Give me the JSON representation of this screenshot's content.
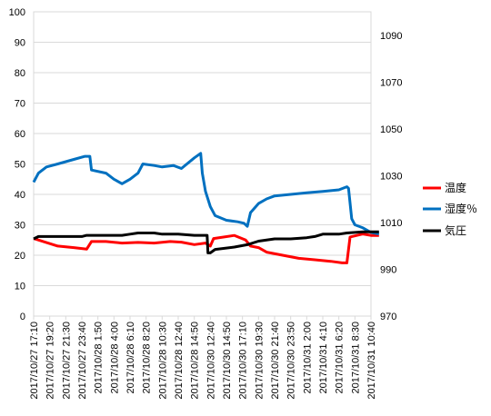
{
  "chart_data": {
    "type": "line",
    "title": "",
    "left_axis": {
      "ylim": [
        0,
        100
      ],
      "ticks": [
        "0",
        "10",
        "20",
        "30",
        "40",
        "50",
        "60",
        "70",
        "80",
        "90",
        "100"
      ]
    },
    "right_axis": {
      "ylim": [
        970,
        1100
      ],
      "ticks": [
        "970",
        "990",
        "1010",
        "1030",
        "1050",
        "1070",
        "1090"
      ]
    },
    "grid": true,
    "legend": "right",
    "x_ticks": [
      "2017/10/27 17:10",
      "2017/10/27 19:20",
      "2017/10/27 21:30",
      "2017/10/27 23:40",
      "2017/10/28 1:50",
      "2017/10/28 4:00",
      "2017/10/28 6:10",
      "2017/10/28 8:20",
      "2017/10/28 10:30",
      "2017/10/28 12:40",
      "2017/10/28 14:50",
      "2017/10/30 12:40",
      "2017/10/30 14:50",
      "2017/10/30 17:10",
      "2017/10/30 19:30",
      "2017/10/30 21:40",
      "2017/10/30 23:50",
      "2017/10/31 2:00",
      "2017/10/31 4:10",
      "2017/10/31 6:20",
      "2017/10/31 8:30",
      "2017/10/31 10:40"
    ],
    "series": [
      {
        "name": "温度",
        "axis": "left",
        "color": "#ff0000",
        "points": [
          [
            0,
            25.5
          ],
          [
            0.6,
            24.5
          ],
          [
            1.5,
            23
          ],
          [
            2.5,
            22.5
          ],
          [
            3.3,
            22
          ],
          [
            3.6,
            24.5
          ],
          [
            4.5,
            24.5
          ],
          [
            5.5,
            24
          ],
          [
            6.5,
            24.2
          ],
          [
            7.5,
            24
          ],
          [
            8.5,
            24.5
          ],
          [
            9.2,
            24.3
          ],
          [
            10,
            23.5
          ],
          [
            10.7,
            24
          ],
          [
            11,
            23
          ],
          [
            11.2,
            25.5
          ],
          [
            12.5,
            26.5
          ],
          [
            13.2,
            25
          ],
          [
            13.5,
            23
          ],
          [
            14,
            22.5
          ],
          [
            14.5,
            21
          ],
          [
            15.5,
            20
          ],
          [
            16.5,
            19
          ],
          [
            17.5,
            18.5
          ],
          [
            18.5,
            18
          ],
          [
            19.2,
            17.5
          ],
          [
            19.5,
            17.5
          ],
          [
            19.7,
            26
          ],
          [
            20.5,
            27
          ],
          [
            21,
            26.5
          ],
          [
            21.5,
            26.5
          ]
        ]
      },
      {
        "name": "湿度％",
        "axis": "left",
        "color": "#0070c0",
        "points": [
          [
            0,
            44
          ],
          [
            0.3,
            47
          ],
          [
            0.8,
            49
          ],
          [
            1.5,
            50
          ],
          [
            2.5,
            51.5
          ],
          [
            3.2,
            52.5
          ],
          [
            3.5,
            52.5
          ],
          [
            3.6,
            48
          ],
          [
            4.5,
            47
          ],
          [
            5,
            45
          ],
          [
            5.5,
            43.5
          ],
          [
            6,
            45
          ],
          [
            6.5,
            47
          ],
          [
            6.8,
            50
          ],
          [
            7.5,
            49.5
          ],
          [
            8,
            49
          ],
          [
            8.7,
            49.5
          ],
          [
            9.2,
            48.5
          ],
          [
            10,
            52
          ],
          [
            10.4,
            53.5
          ],
          [
            10.5,
            47
          ],
          [
            10.7,
            41
          ],
          [
            11,
            36
          ],
          [
            11.3,
            33
          ],
          [
            12,
            31.5
          ],
          [
            12.7,
            31
          ],
          [
            13.1,
            30.5
          ],
          [
            13.3,
            29.5
          ],
          [
            13.5,
            34
          ],
          [
            14,
            37
          ],
          [
            14.5,
            38.5
          ],
          [
            15,
            39.5
          ],
          [
            16,
            40
          ],
          [
            17,
            40.5
          ],
          [
            18,
            41
          ],
          [
            19,
            41.5
          ],
          [
            19.5,
            42.5
          ],
          [
            19.6,
            42
          ],
          [
            19.8,
            32
          ],
          [
            20,
            30
          ],
          [
            20.5,
            29
          ],
          [
            21,
            27.5
          ],
          [
            21.5,
            27
          ]
        ]
      },
      {
        "name": "気圧",
        "axis": "right",
        "color": "#000000",
        "points": [
          [
            0,
            1003
          ],
          [
            0.3,
            1004
          ],
          [
            1,
            1004
          ],
          [
            2,
            1004
          ],
          [
            3,
            1004
          ],
          [
            3.3,
            1004.5
          ],
          [
            4.5,
            1004.5
          ],
          [
            5.5,
            1004.5
          ],
          [
            6,
            1005
          ],
          [
            6.5,
            1005.5
          ],
          [
            7.5,
            1005.5
          ],
          [
            8,
            1005
          ],
          [
            9,
            1005
          ],
          [
            10,
            1004.5
          ],
          [
            10.8,
            1004.5
          ],
          [
            10.85,
            997
          ],
          [
            11,
            997
          ],
          [
            11.3,
            998.5
          ],
          [
            12.5,
            999.5
          ],
          [
            13.3,
            1000.5
          ],
          [
            14,
            1002
          ],
          [
            15,
            1003
          ],
          [
            16,
            1003
          ],
          [
            17,
            1003.5
          ],
          [
            17.5,
            1004
          ],
          [
            18,
            1005
          ],
          [
            19,
            1005
          ],
          [
            19.5,
            1005.5
          ],
          [
            20.5,
            1006
          ],
          [
            21.5,
            1006
          ]
        ]
      }
    ]
  }
}
